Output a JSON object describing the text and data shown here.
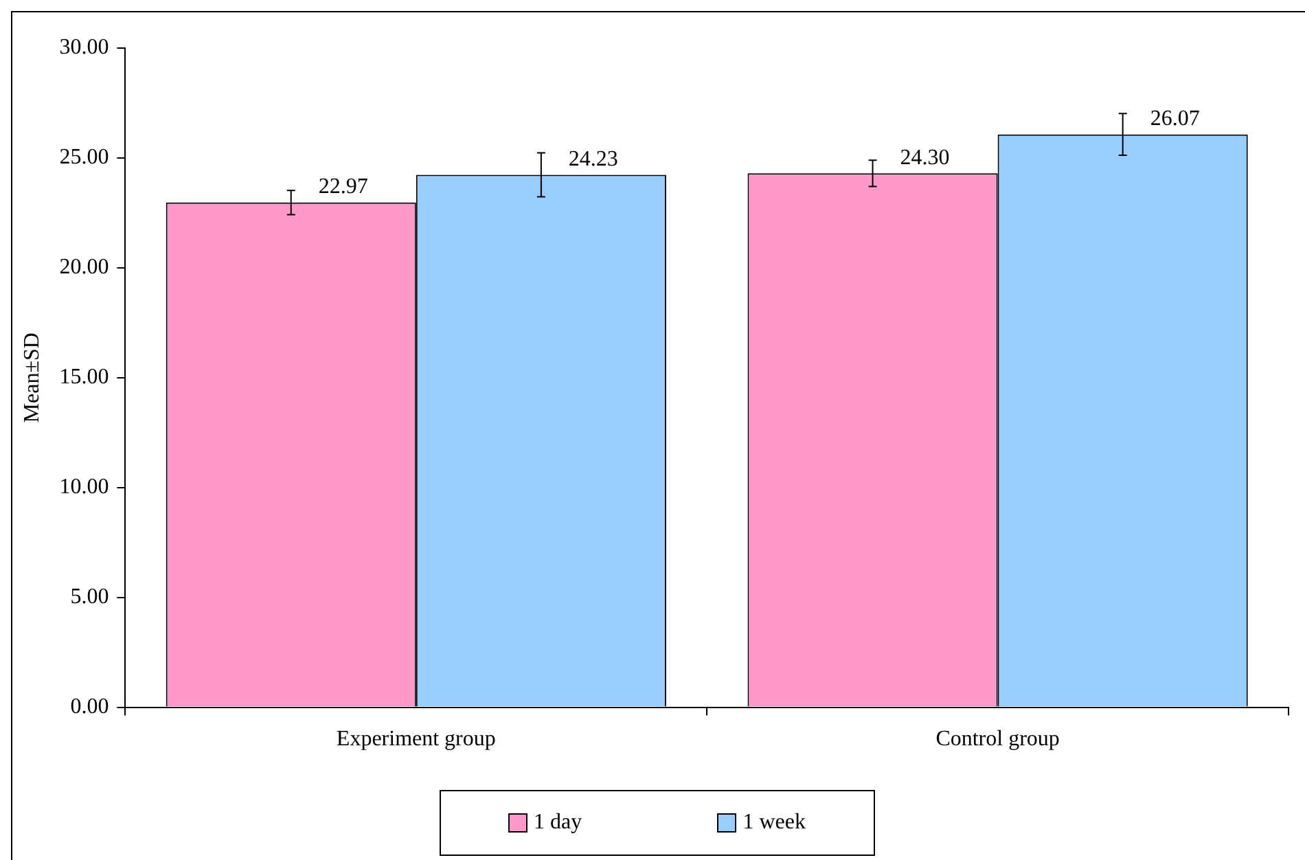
{
  "chart_data": {
    "type": "bar",
    "ylabel": "Mean±SD",
    "categories": [
      "Experiment group",
      "Control group"
    ],
    "series": [
      {
        "name": "1 day",
        "color": "#ff99cc",
        "values": [
          22.97,
          24.3
        ],
        "errors": [
          0.55,
          0.6
        ],
        "value_labels": [
          "22.97",
          "24.30"
        ]
      },
      {
        "name": "1 week",
        "color": "#99ccff",
        "values": [
          24.23,
          26.07
        ],
        "errors": [
          1.0,
          0.95
        ],
        "value_labels": [
          "24.23",
          "26.07"
        ]
      }
    ],
    "ylim": [
      0,
      30
    ],
    "yticks": [
      {
        "value": 0,
        "label": "0.00"
      },
      {
        "value": 5,
        "label": "5.00"
      },
      {
        "value": 10,
        "label": "10.00"
      },
      {
        "value": 15,
        "label": "15.00"
      },
      {
        "value": 20,
        "label": "20.00"
      },
      {
        "value": 25,
        "label": "25.00"
      },
      {
        "value": 30,
        "label": "30.00"
      }
    ],
    "grid": false,
    "legend": "bottom"
  }
}
